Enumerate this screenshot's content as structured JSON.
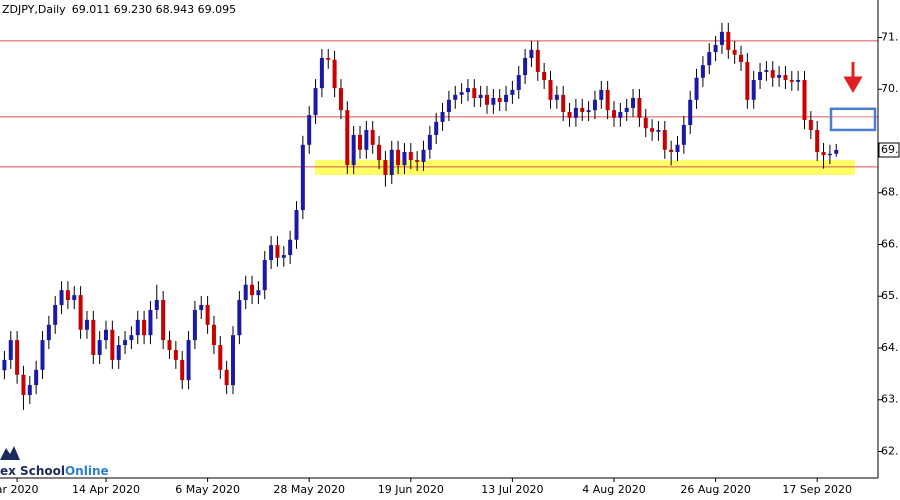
{
  "chart_data": {
    "type": "candlestick",
    "symbol": "ZDJPY,Daily",
    "ohlc_text": "69.011 69.230 68.943 69.095",
    "logo": [
      "ex School",
      "Online"
    ],
    "categories": [
      null,
      null,
      "ar 2020",
      null,
      null,
      null,
      null,
      null,
      null,
      null,
      null,
      null,
      null,
      null,
      null,
      null,
      "14 Apr 2020",
      null,
      null,
      null,
      null,
      null,
      null,
      null,
      null,
      null,
      null,
      null,
      null,
      null,
      null,
      null,
      "6 May 2020",
      null,
      null,
      null,
      null,
      null,
      null,
      null,
      null,
      null,
      null,
      null,
      null,
      null,
      null,
      null,
      "28 May 2020",
      null,
      null,
      null,
      null,
      null,
      null,
      null,
      null,
      null,
      null,
      null,
      null,
      null,
      null,
      null,
      "19 Jun 2020",
      null,
      null,
      null,
      null,
      null,
      null,
      null,
      null,
      null,
      null,
      null,
      null,
      null,
      null,
      null,
      "13 Jul 2020",
      null,
      null,
      null,
      null,
      null,
      null,
      null,
      null,
      null,
      null,
      null,
      null,
      null,
      null,
      null,
      "4 Aug 2020",
      null,
      null,
      null,
      null,
      null,
      null,
      null,
      null,
      null,
      null,
      null,
      null,
      null,
      null,
      null,
      "26 Aug 2020",
      null,
      null,
      null,
      null,
      null,
      null,
      null,
      null,
      null,
      null,
      null,
      null,
      null,
      null,
      null,
      "17 Sep 2020",
      null,
      null,
      null
    ],
    "open": [
      64.2,
      64.43,
      64.87,
      64.1,
      63.65,
      63.87,
      64.21,
      64.87,
      65.21,
      65.65,
      65.98,
      65.76,
      65.87,
      65.1,
      65.32,
      64.54,
      64.87,
      65.1,
      64.43,
      64.76,
      64.87,
      64.98,
      65.32,
      64.98,
      65.54,
      65.76,
      64.87,
      64.65,
      64.43,
      63.98,
      64.87,
      65.54,
      65.65,
      65.21,
      64.76,
      64.21,
      63.87,
      64.98,
      65.76,
      66.1,
      65.87,
      65.98,
      66.65,
      66.98,
      66.7,
      66.76,
      67.1,
      67.76,
      69.21,
      69.87,
      70.47,
      71.14,
      71.1,
      70.47,
      69.98,
      68.76,
      69.43,
      69.1,
      69.54,
      69.21,
      68.87,
      68.54,
      69.1,
      68.76,
      69.05,
      68.87,
      68.83,
      69.1,
      69.43,
      69.72,
      69.94,
      70.21,
      70.32,
      70.38,
      70.47,
      70.25,
      70.32,
      70.1,
      70.25,
      70.16,
      70.32,
      70.43,
      70.76,
      71.14,
      71.32,
      70.83,
      70.65,
      70.21,
      70.32,
      69.94,
      69.81,
      70.03,
      69.94,
      69.98,
      70.21,
      70.43,
      69.98,
      69.81,
      69.94,
      70.03,
      70.25,
      69.81,
      69.58,
      69.5,
      69.54,
      69.1,
      69.05,
      69.21,
      69.65,
      70.21,
      70.7,
      70.98,
      71.27,
      71.43,
      71.72,
      71.32,
      71.21,
      71.05,
      70.21,
      70.65,
      70.83,
      70.87,
      70.7,
      70.76,
      70.65,
      70.61,
      70.65,
      69.76,
      69.54,
      69.05,
      68.98,
      69.011
    ],
    "high": [
      64.63,
      65.07,
      65.07,
      64.3,
      64.07,
      64.41,
      65.07,
      65.41,
      65.85,
      66.18,
      66.18,
      66.07,
      66.07,
      65.52,
      65.52,
      65.07,
      65.3,
      65.3,
      64.96,
      65.07,
      65.18,
      65.52,
      65.52,
      65.74,
      66.1,
      65.96,
      65.07,
      64.85,
      64.63,
      65.07,
      65.74,
      65.85,
      65.85,
      65.41,
      64.96,
      64.41,
      65.18,
      65.96,
      66.3,
      66.3,
      66.18,
      66.85,
      67.18,
      67.18,
      66.96,
      67.3,
      67.96,
      69.41,
      70.07,
      70.67,
      71.34,
      71.34,
      71.3,
      70.67,
      70.18,
      69.63,
      69.63,
      69.74,
      69.74,
      69.41,
      69.07,
      69.3,
      69.3,
      69.25,
      69.25,
      69.07,
      69.3,
      69.63,
      69.92,
      70.14,
      70.41,
      70.52,
      70.58,
      70.67,
      70.67,
      70.52,
      70.52,
      70.45,
      70.45,
      70.52,
      70.63,
      70.96,
      71.34,
      71.52,
      71.52,
      71.03,
      70.85,
      70.52,
      70.52,
      70.14,
      70.23,
      70.23,
      70.18,
      70.41,
      70.63,
      70.63,
      70.18,
      70.14,
      70.23,
      70.45,
      70.45,
      70.01,
      69.78,
      69.74,
      69.74,
      69.3,
      69.41,
      69.85,
      70.41,
      70.9,
      71.18,
      71.47,
      71.63,
      71.92,
      71.92,
      71.52,
      71.41,
      71.25,
      70.85,
      71.03,
      71.07,
      71.07,
      70.96,
      70.96,
      70.85,
      70.85,
      70.85,
      69.96,
      69.74,
      69.25,
      69.21,
      69.23
    ],
    "low": [
      64.0,
      64.23,
      63.9,
      63.32,
      63.45,
      63.67,
      64.01,
      64.67,
      65.01,
      65.45,
      65.56,
      65.56,
      64.9,
      64.9,
      64.34,
      64.34,
      64.67,
      64.23,
      64.23,
      64.56,
      64.67,
      64.78,
      64.78,
      64.78,
      65.34,
      64.67,
      64.45,
      64.23,
      63.78,
      63.78,
      64.67,
      65.34,
      65.01,
      64.56,
      64.01,
      63.67,
      63.67,
      64.78,
      65.56,
      65.67,
      65.67,
      65.78,
      66.45,
      66.5,
      66.5,
      66.56,
      66.9,
      67.56,
      69.01,
      69.67,
      70.27,
      70.9,
      70.27,
      69.78,
      68.56,
      68.56,
      68.9,
      68.9,
      69.01,
      68.67,
      68.28,
      68.34,
      68.56,
      68.56,
      68.67,
      68.63,
      68.63,
      68.9,
      69.23,
      69.52,
      69.74,
      70.01,
      70.12,
      70.18,
      70.05,
      70.05,
      69.9,
      69.9,
      69.96,
      69.96,
      70.12,
      70.23,
      70.56,
      70.94,
      70.63,
      70.45,
      70.01,
      70.01,
      69.74,
      69.61,
      69.61,
      69.74,
      69.74,
      69.78,
      70.01,
      69.78,
      69.61,
      69.61,
      69.74,
      69.83,
      69.61,
      69.38,
      69.3,
      69.3,
      68.9,
      68.75,
      68.85,
      69.01,
      69.45,
      70.01,
      70.5,
      70.78,
      71.07,
      71.23,
      71.12,
      71.01,
      70.85,
      70.01,
      70.01,
      70.45,
      70.63,
      70.5,
      70.5,
      70.45,
      70.41,
      70.41,
      69.56,
      69.34,
      68.85,
      68.68,
      68.78,
      68.943
    ],
    "close": [
      64.43,
      64.87,
      64.1,
      63.65,
      63.87,
      64.21,
      64.87,
      65.21,
      65.65,
      65.98,
      65.76,
      65.87,
      65.1,
      65.32,
      64.54,
      64.87,
      65.1,
      64.43,
      64.76,
      64.87,
      64.98,
      65.32,
      64.98,
      65.54,
      65.76,
      64.87,
      64.65,
      64.43,
      63.98,
      64.87,
      65.54,
      65.65,
      65.21,
      64.76,
      64.21,
      63.87,
      64.98,
      65.76,
      66.1,
      65.87,
      65.98,
      66.65,
      66.98,
      66.7,
      66.76,
      67.1,
      67.76,
      69.21,
      69.87,
      70.47,
      71.14,
      71.1,
      70.47,
      69.98,
      68.76,
      69.43,
      69.1,
      69.54,
      69.21,
      68.87,
      68.54,
      69.1,
      68.76,
      69.05,
      68.87,
      68.83,
      69.1,
      69.43,
      69.72,
      69.94,
      70.21,
      70.32,
      70.38,
      70.47,
      70.25,
      70.32,
      70.1,
      70.25,
      70.16,
      70.32,
      70.43,
      70.76,
      71.14,
      71.32,
      70.83,
      70.65,
      70.21,
      70.32,
      69.94,
      69.81,
      70.03,
      69.94,
      69.98,
      70.21,
      70.43,
      69.98,
      69.81,
      69.94,
      70.03,
      70.25,
      69.81,
      69.58,
      69.5,
      69.54,
      69.1,
      69.05,
      69.21,
      69.65,
      70.21,
      70.7,
      70.98,
      71.27,
      71.43,
      71.72,
      71.32,
      71.21,
      71.05,
      70.21,
      70.65,
      70.83,
      70.87,
      70.7,
      70.76,
      70.65,
      70.61,
      70.65,
      69.76,
      69.54,
      69.05,
      68.98,
      69.01,
      69.095
    ],
    "up_color": "#1a1aa8",
    "down_color": "#c80000",
    "wick_color": "#000000",
    "ylim": [
      61.806,
      72.428
    ],
    "yticks": [
      {
        "value": 71.595,
        "label": "71."
      },
      {
        "value": 70.445,
        "label": "70."
      },
      {
        "value": 68.145,
        "label": "68."
      },
      {
        "value": 66.995,
        "label": "66."
      },
      {
        "value": 65.845,
        "label": "65."
      },
      {
        "value": 64.695,
        "label": "64."
      },
      {
        "value": 63.545,
        "label": "63."
      },
      {
        "value": 62.395,
        "label": "62."
      }
    ],
    "price_label": {
      "value": 69.095,
      "label": "69."
    },
    "levels": [
      71.52,
      69.83,
      68.72
    ],
    "level_color": "#e05050",
    "zone": {
      "low": 68.54,
      "high": 68.87,
      "color": "#ffff66"
    },
    "target_box": {
      "low": 69.54,
      "high": 70.01,
      "color": "#4a7fd0"
    },
    "arrow_color": "#e02020"
  }
}
